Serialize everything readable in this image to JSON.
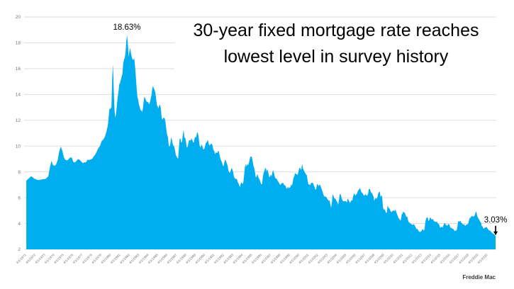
{
  "chart_data": {
    "type": "area",
    "title": "30-year fixed mortgage rate reaches lowest level in survey history",
    "source": "Freddie Mac",
    "series_name": "30-year fixed mortgage rate (%)",
    "fill_color": "#00AEEF",
    "grid_color": "#D9D9D9",
    "axis_label_color": "#767676",
    "annotation_color": "#000000",
    "ylim": [
      2,
      20
    ],
    "y_ticks": [
      2,
      4,
      6,
      8,
      10,
      12,
      14,
      16,
      18,
      20
    ],
    "x_domain": [
      1971,
      2021
    ],
    "grid": true,
    "legend": false,
    "x_tick_labels": [
      "4/1/1971",
      "4/1/1972",
      "4/1/1973",
      "4/1/1974",
      "4/1/1975",
      "4/1/1976",
      "4/1/1977",
      "4/1/1978",
      "4/1/1979",
      "4/1/1980",
      "4/1/1981",
      "4/1/1982",
      "4/1/1983",
      "4/1/1984",
      "4/1/1985",
      "4/1/1986",
      "4/1/1987",
      "4/1/1988",
      "4/1/1989",
      "4/1/1990",
      "4/1/1991",
      "4/1/1992",
      "4/1/1993",
      "4/1/1994",
      "4/1/1995",
      "4/1/1996",
      "4/1/1997",
      "4/1/1998",
      "4/1/1999",
      "4/1/2000",
      "4/1/2001",
      "4/1/2002",
      "4/1/2003",
      "4/1/2004",
      "4/1/2005",
      "4/1/2006",
      "4/1/2007",
      "4/1/2008",
      "4/1/2009",
      "4/1/2010",
      "4/1/2011",
      "4/1/2012",
      "4/1/2013",
      "4/1/2014",
      "4/1/2015",
      "4/1/2016",
      "4/1/2017",
      "4/1/2018",
      "4/1/2019",
      "4/1/2020"
    ],
    "annotations": {
      "peak": {
        "label": "18.63%",
        "x": 1981.79,
        "y": 18.63
      },
      "low": {
        "label": "3.03%",
        "x": 2020.93,
        "y": 3.03,
        "arrow": "down"
      }
    },
    "series_by_year": {
      "1971": [
        7.33,
        7.43,
        7.54,
        7.66,
        7.6,
        7.48
      ],
      "1972": [
        7.44,
        7.37,
        7.37,
        7.4,
        7.42,
        7.44
      ],
      "1973": [
        7.44,
        7.54,
        7.65,
        8.32,
        8.85,
        8.54
      ],
      "1974": [
        8.46,
        8.58,
        8.92,
        9.59,
        9.96,
        9.62
      ],
      "1975": [
        9.1,
        8.93,
        8.89,
        9.0,
        9.13,
        9.1
      ],
      "1976": [
        8.76,
        8.73,
        8.85,
        9.0,
        8.93,
        8.81
      ],
      "1977": [
        8.67,
        8.75,
        8.73,
        8.94,
        8.92,
        8.96
      ],
      "1978": [
        9.02,
        9.2,
        9.36,
        9.6,
        9.86,
        10.02
      ],
      "1979": [
        10.38,
        10.5,
        10.7,
        11.09,
        11.64,
        12.9
      ],
      "1980": [
        12.88,
        13.04,
        15.28,
        16.33,
        14.26,
        12.71,
        12.19,
        12.56,
        13.2,
        13.79,
        14.21,
        14.79
      ],
      "1981": [
        14.9,
        15.13,
        15.4,
        15.58,
        16.4,
        16.7,
        16.83,
        17.29,
        18.16,
        18.63,
        17.83,
        16.92
      ],
      "1982": [
        17.4,
        17.6,
        17.16,
        16.89,
        16.68,
        16.7,
        16.82,
        16.27,
        15.43,
        14.61,
        13.83,
        13.62
      ],
      "1983": [
        13.25,
        13.04,
        12.8,
        12.78,
        12.63,
        12.87,
        13.42,
        13.81,
        13.73,
        13.54,
        13.44,
        13.42
      ],
      "1984": [
        13.37,
        13.23,
        13.39,
        13.65,
        13.94,
        14.42,
        14.67,
        14.47,
        14.35,
        14.13,
        13.64,
        13.18
      ],
      "1985": [
        13.08,
        12.92,
        13.17,
        13.2,
        12.91,
        12.22,
        12.03,
        12.19,
        12.19,
        12.14,
        11.78,
        11.26
      ],
      "1986": [
        10.88,
        10.71,
        10.08,
        9.94,
        10.14,
        10.68,
        10.51,
        10.2,
        10.01,
        9.97,
        9.7,
        9.31
      ],
      "1987": [
        9.2,
        9.08,
        9.04,
        9.83,
        10.6,
        10.54,
        10.28,
        10.33,
        10.89,
        11.26,
        10.65,
        10.64
      ],
      "1988": [
        10.38,
        9.89,
        9.93,
        10.2,
        10.46,
        10.46,
        10.43,
        10.6,
        10.48,
        10.3,
        10.27,
        10.61
      ],
      "1989": [
        10.73,
        10.65,
        11.03,
        11.05,
        10.77,
        10.2,
        9.88,
        9.99,
        10.13,
        9.95,
        9.77,
        9.74
      ],
      "1990": [
        9.9,
        10.2,
        10.27,
        10.37,
        10.48,
        10.16,
        10.04,
        10.1,
        10.18,
        10.17,
        10.01,
        9.67
      ],
      "1991": [
        9.64,
        9.37,
        9.5,
        9.49,
        9.47,
        9.62,
        9.58,
        9.24,
        9.01,
        8.86,
        8.71,
        8.5
      ],
      "1992": [
        8.43,
        8.76,
        8.94,
        8.85,
        8.67,
        8.51,
        8.13,
        7.98,
        7.92,
        8.09,
        8.31,
        8.21
      ],
      "1993": [
        8.02,
        7.68,
        7.5,
        7.47,
        7.47,
        7.42,
        7.21,
        7.11,
        6.92,
        6.83,
        7.16,
        7.17
      ],
      "1994": [
        7.06,
        7.15,
        7.68,
        8.32,
        8.6,
        8.4,
        8.61,
        8.51,
        8.64,
        8.93,
        9.17,
        9.2
      ],
      "1995": [
        9.15,
        8.83,
        8.46,
        8.32,
        7.96,
        7.57,
        7.61,
        7.86,
        7.64,
        7.48,
        7.38,
        7.2
      ],
      "1996": [
        7.03,
        7.08,
        7.62,
        7.93,
        8.07,
        8.32,
        8.25,
        8.0,
        8.23,
        7.92,
        7.62,
        7.6
      ],
      "1997": [
        7.82,
        7.65,
        7.9,
        8.14,
        7.94,
        7.69,
        7.5,
        7.48,
        7.43,
        7.29,
        7.21,
        7.1
      ],
      "1998": [
        6.99,
        7.04,
        7.13,
        7.14,
        7.14,
        7.0,
        6.95,
        6.92,
        6.72,
        6.71,
        6.87,
        6.72
      ],
      "1999": [
        6.79,
        6.81,
        7.04,
        6.92,
        7.15,
        7.55,
        7.63,
        7.94,
        7.82,
        7.85,
        7.74,
        7.91
      ],
      "2000": [
        8.21,
        8.33,
        8.24,
        8.15,
        8.64,
        8.29,
        8.15,
        8.03,
        7.91,
        7.8,
        7.75,
        7.38
      ],
      "2001": [
        7.03,
        7.05,
        6.95,
        7.08,
        7.15,
        7.16,
        7.13,
        6.95,
        6.82,
        6.62,
        6.66,
        7.07
      ],
      "2002": [
        7.0,
        6.89,
        7.01,
        6.99,
        6.81,
        6.65,
        6.49,
        6.29,
        6.09,
        6.11,
        6.07,
        6.05
      ],
      "2003": [
        5.92,
        5.84,
        5.75,
        5.81,
        5.48,
        5.23,
        5.63,
        6.26,
        6.15,
        5.95,
        5.93,
        5.88
      ],
      "2004": [
        5.71,
        5.64,
        5.45,
        5.83,
        6.27,
        6.29,
        6.06,
        5.87,
        5.75,
        5.72,
        5.73,
        5.75
      ],
      "2005": [
        5.71,
        5.63,
        5.93,
        5.86,
        5.72,
        5.58,
        5.7,
        5.82,
        5.77,
        6.07,
        6.33,
        6.27
      ],
      "2006": [
        6.15,
        6.25,
        6.32,
        6.51,
        6.6,
        6.68,
        6.76,
        6.52,
        6.4,
        6.36,
        6.24,
        6.14
      ],
      "2007": [
        6.22,
        6.29,
        6.16,
        6.18,
        6.26,
        6.66,
        6.7,
        6.57,
        6.38,
        6.38,
        6.21,
        6.1
      ],
      "2008": [
        5.76,
        5.92,
        5.97,
        5.92,
        6.04,
        6.32,
        6.43,
        6.48,
        6.04,
        6.2,
        6.09,
        5.29
      ],
      "2009": [
        5.05,
        5.13,
        5.0,
        4.81,
        4.86,
        5.42,
        5.22,
        5.19,
        5.06,
        4.95,
        4.88,
        4.93
      ],
      "2010": [
        5.03,
        4.99,
        4.97,
        5.1,
        4.89,
        4.74,
        4.56,
        4.43,
        4.35,
        4.23,
        4.3,
        4.71
      ],
      "2011": [
        4.76,
        4.95,
        4.84,
        4.84,
        4.64,
        4.51,
        4.55,
        4.27,
        4.09,
        4.07,
        4.0,
        3.96
      ],
      "2012": [
        3.92,
        3.89,
        3.95,
        3.91,
        3.8,
        3.68,
        3.55,
        3.6,
        3.47,
        3.38,
        3.35,
        3.35
      ],
      "2013": [
        3.41,
        3.53,
        3.57,
        3.45,
        3.54,
        4.07,
        4.37,
        4.46,
        4.49,
        4.19,
        4.26,
        4.46
      ],
      "2014": [
        4.43,
        4.3,
        4.34,
        4.34,
        4.19,
        4.16,
        4.13,
        4.12,
        4.16,
        3.98,
        3.99,
        3.86
      ],
      "2015": [
        3.67,
        3.71,
        3.77,
        3.67,
        3.84,
        3.98,
        4.05,
        3.91,
        3.89,
        3.8,
        3.94,
        3.96
      ],
      "2016": [
        3.87,
        3.66,
        3.69,
        3.61,
        3.6,
        3.57,
        3.44,
        3.44,
        3.46,
        3.47,
        3.77,
        4.2
      ],
      "2017": [
        4.15,
        4.17,
        4.2,
        4.05,
        4.01,
        3.9,
        3.97,
        3.88,
        3.81,
        3.9,
        3.92,
        3.95
      ],
      "2018": [
        4.03,
        4.33,
        4.44,
        4.47,
        4.59,
        4.57,
        4.53,
        4.55,
        4.63,
        4.83,
        4.94,
        4.64
      ],
      "2019": [
        4.46,
        4.37,
        4.27,
        4.14,
        4.07,
        3.8,
        3.77,
        3.62,
        3.61,
        3.69,
        3.7,
        3.74
      ],
      "2020": [
        3.62,
        3.47,
        3.45,
        3.31,
        3.23,
        3.16,
        3.03
      ]
    }
  }
}
